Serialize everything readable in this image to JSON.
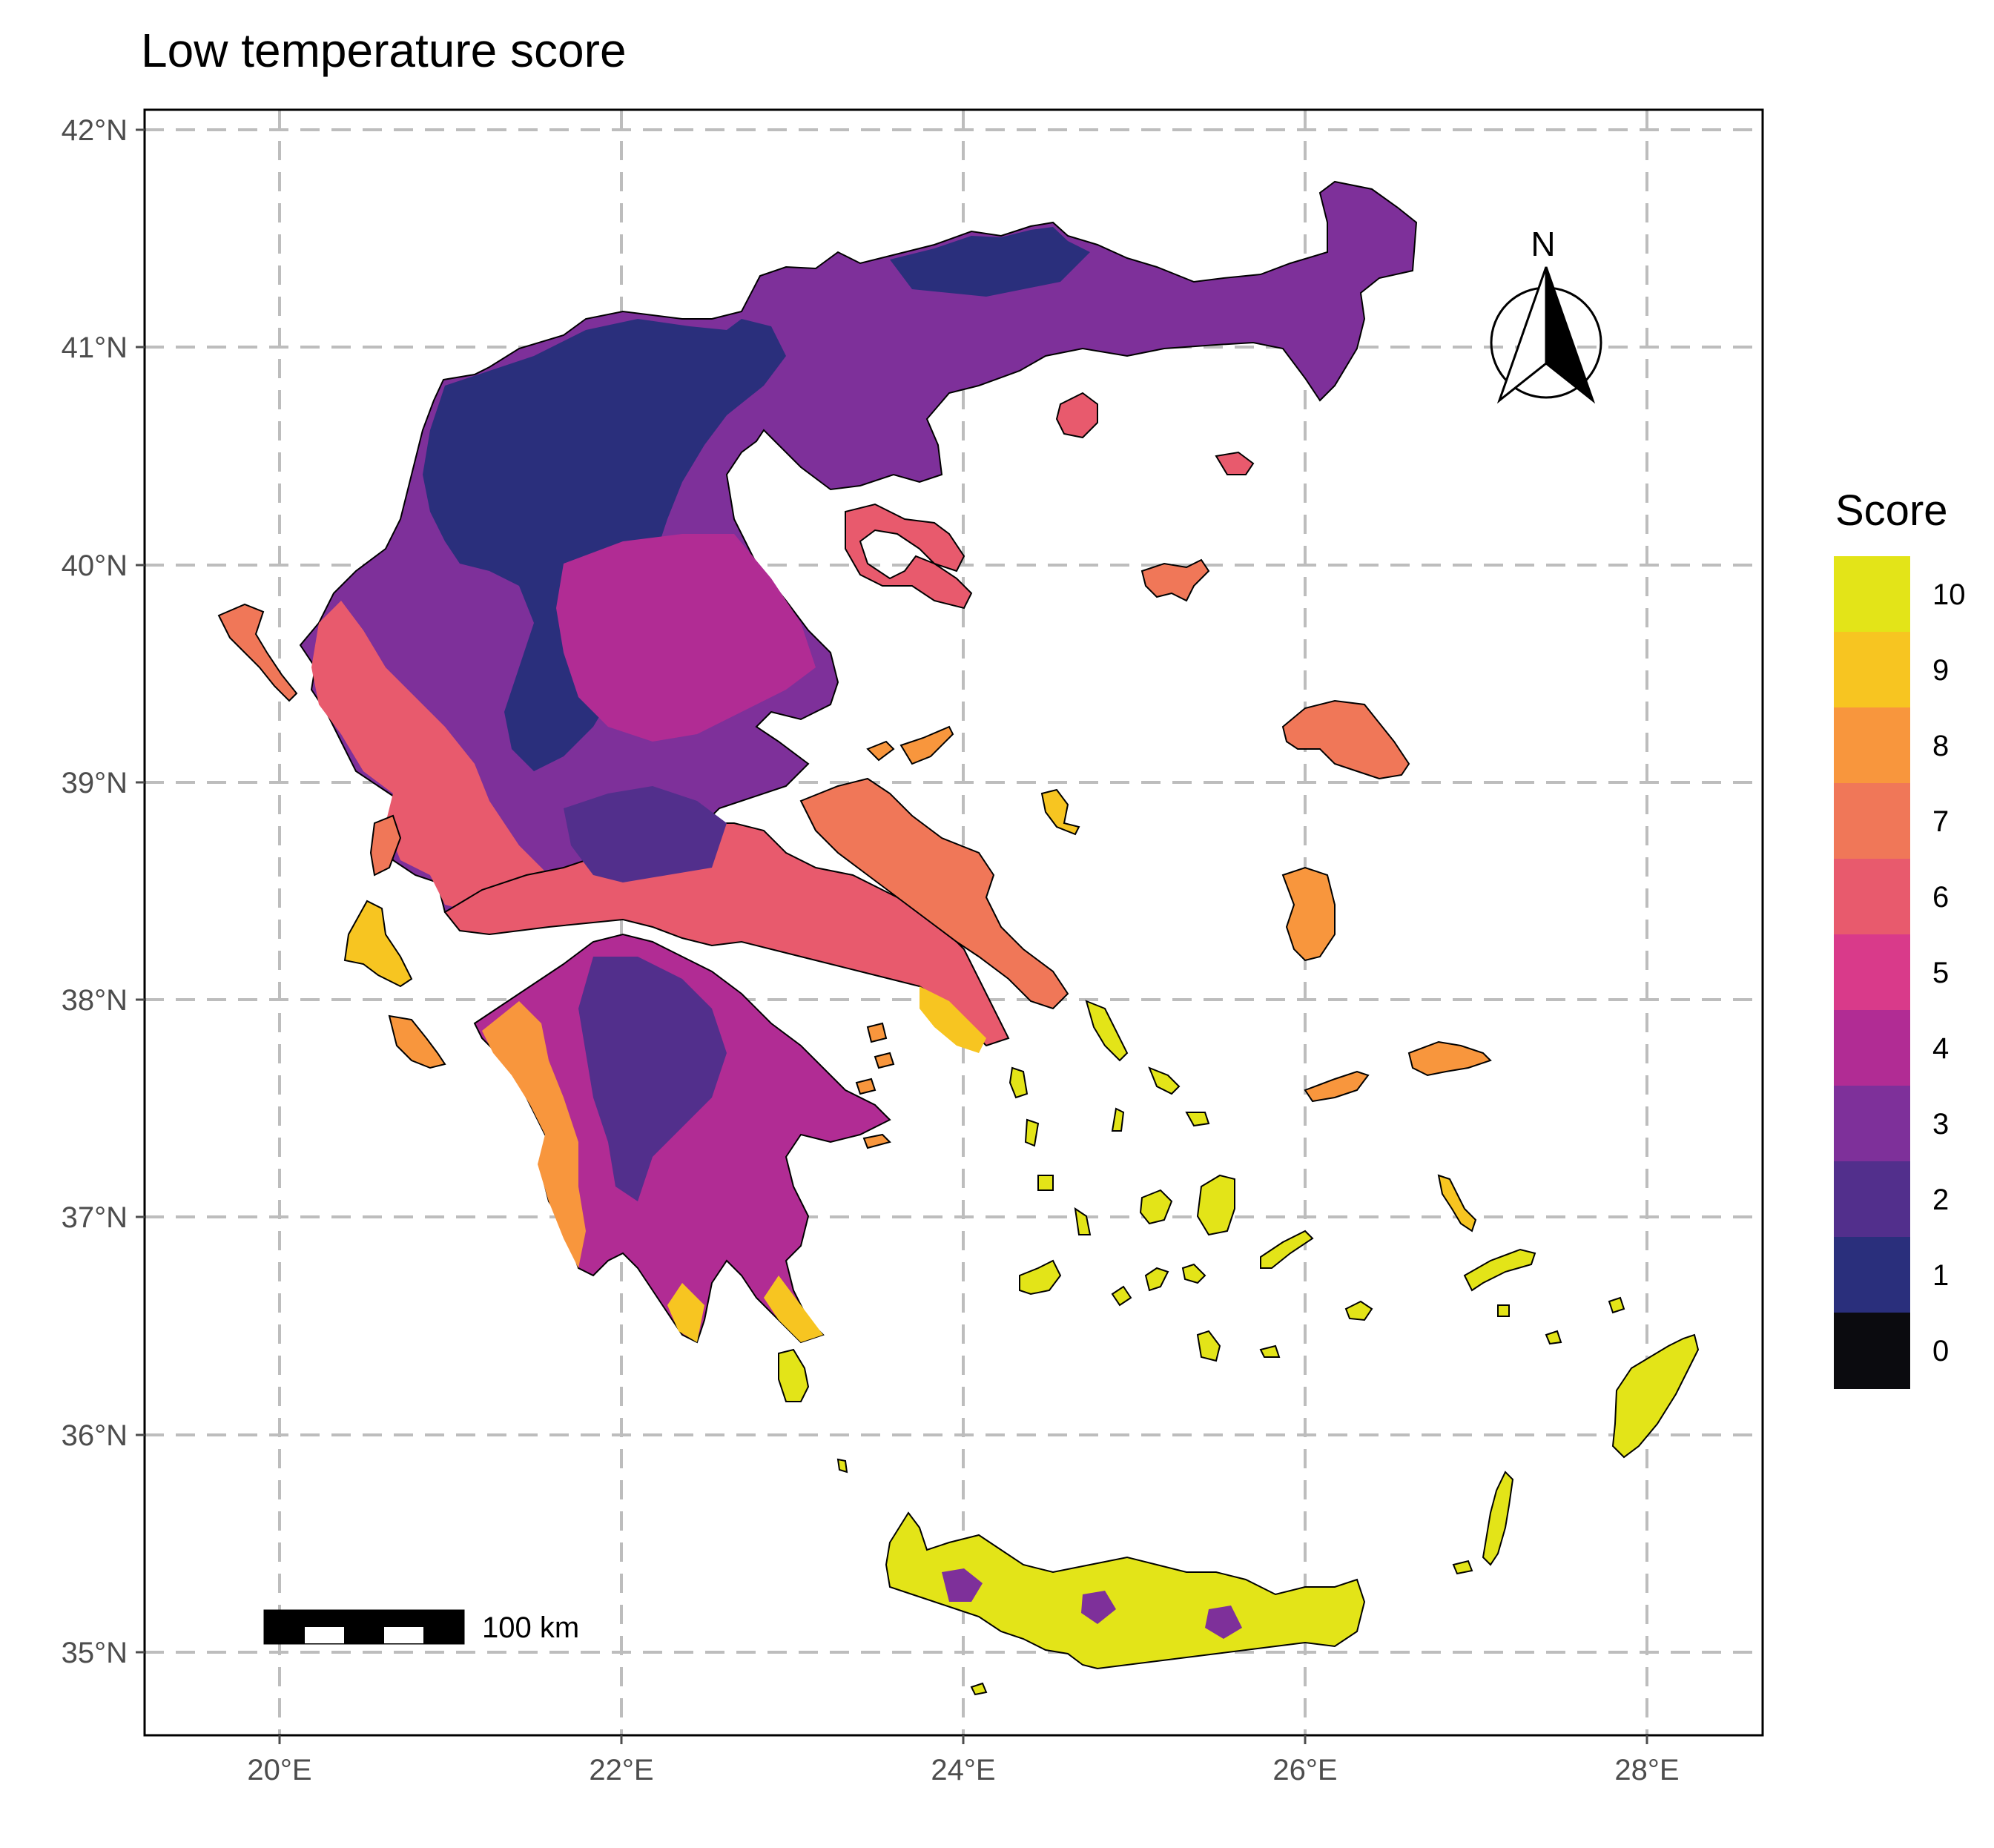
{
  "title": "Low temperature score",
  "axes": {
    "y_ticks": [
      "42°N",
      "41°N",
      "40°N",
      "39°N",
      "38°N",
      "37°N",
      "36°N",
      "35°N"
    ],
    "x_ticks": [
      "20°E",
      "22°E",
      "24°E",
      "26°E",
      "28°E"
    ]
  },
  "legend": {
    "title": "Score",
    "items": [
      {
        "label": "10",
        "color": "#e3e418"
      },
      {
        "label": "9",
        "color": "#f7c521"
      },
      {
        "label": "8",
        "color": "#f8963d"
      },
      {
        "label": "7",
        "color": "#f07758"
      },
      {
        "label": "6",
        "color": "#e85a6d"
      },
      {
        "label": "5",
        "color": "#d93a8a"
      },
      {
        "label": "4",
        "color": "#b12c94"
      },
      {
        "label": "3",
        "color": "#7e309a"
      },
      {
        "label": "2",
        "color": "#522f8c"
      },
      {
        "label": "1",
        "color": "#2a2f7c"
      },
      {
        "label": "0",
        "color": "#0b0b0f"
      }
    ]
  },
  "scale_bar": {
    "label": "100 km"
  },
  "north_arrow": {
    "label": "N"
  }
}
